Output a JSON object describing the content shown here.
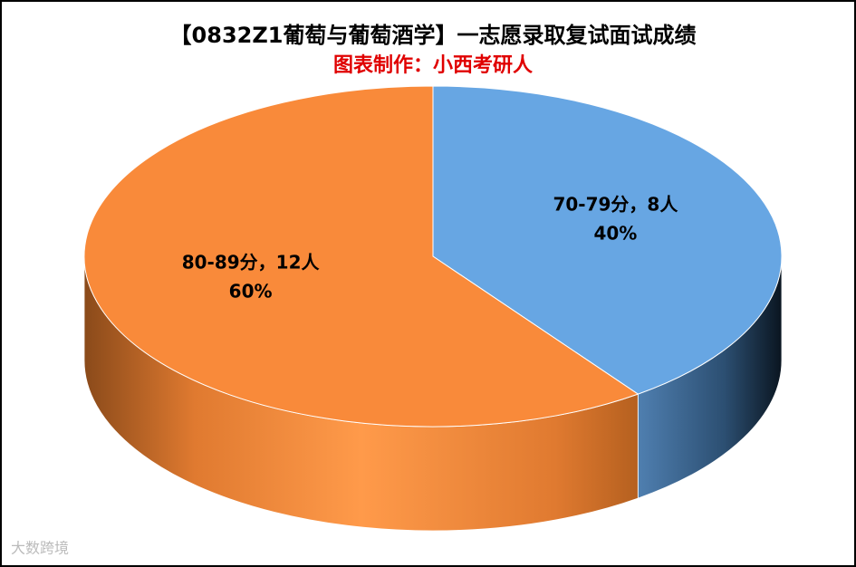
{
  "chart_data": {
    "type": "pie",
    "title": "【0832Z1葡萄与葡萄酒学】一志愿录取复试面试成绩",
    "subtitle": "图表制作：小西考研人",
    "categories": [
      "70-79分，8人",
      "80-89分，12人"
    ],
    "values": [
      40,
      60
    ],
    "value_labels": [
      "40%",
      "60%"
    ],
    "colors": [
      "#67a6e3",
      "#f98a3a"
    ],
    "watermark": "大数跨境"
  }
}
